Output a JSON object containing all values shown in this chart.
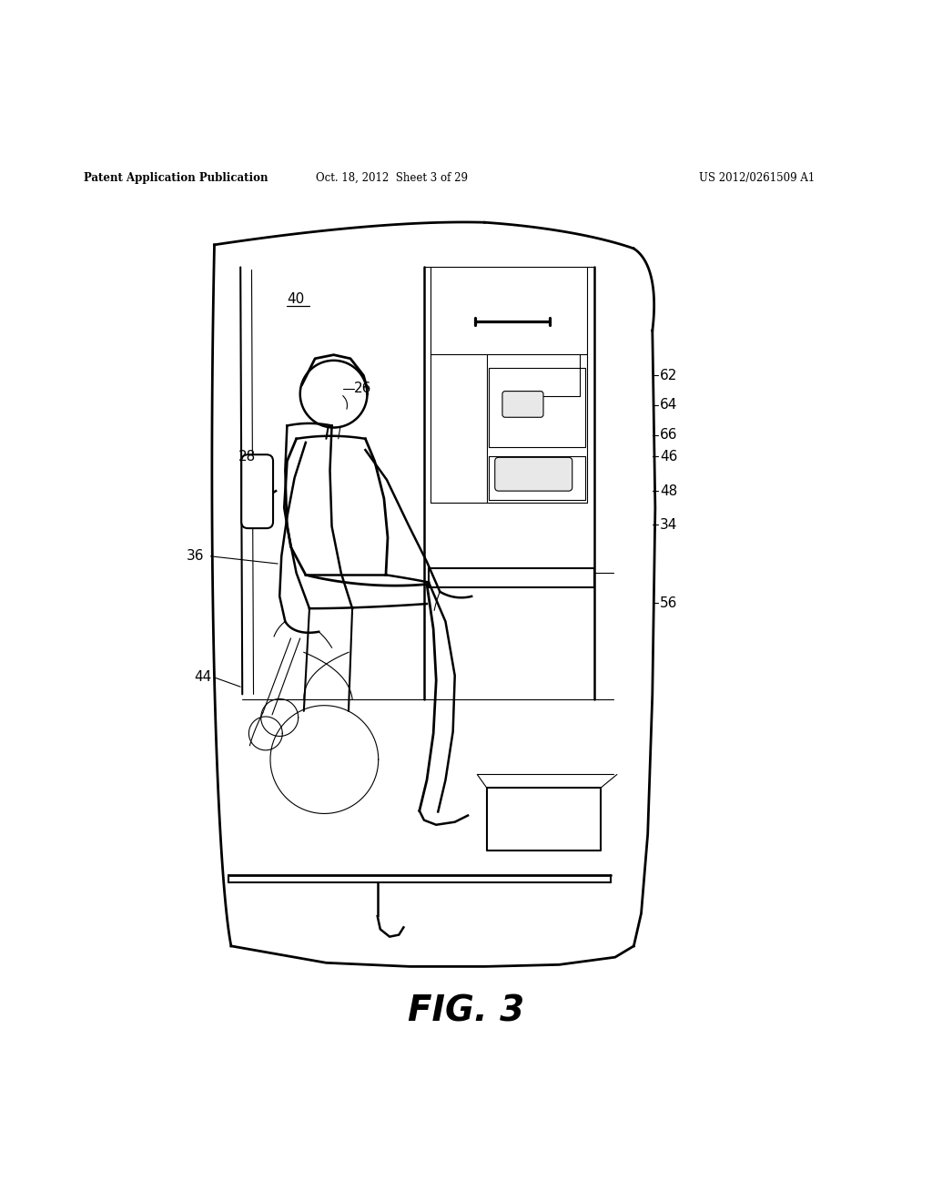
{
  "background_color": "#ffffff",
  "header_left": "Patent Application Publication",
  "header_center": "Oct. 18, 2012  Sheet 3 of 29",
  "header_right": "US 2012/0261509 A1",
  "figure_label": "FIG. 3",
  "line_color": "#000000",
  "lw_main": 1.5,
  "lw_thin": 0.8
}
